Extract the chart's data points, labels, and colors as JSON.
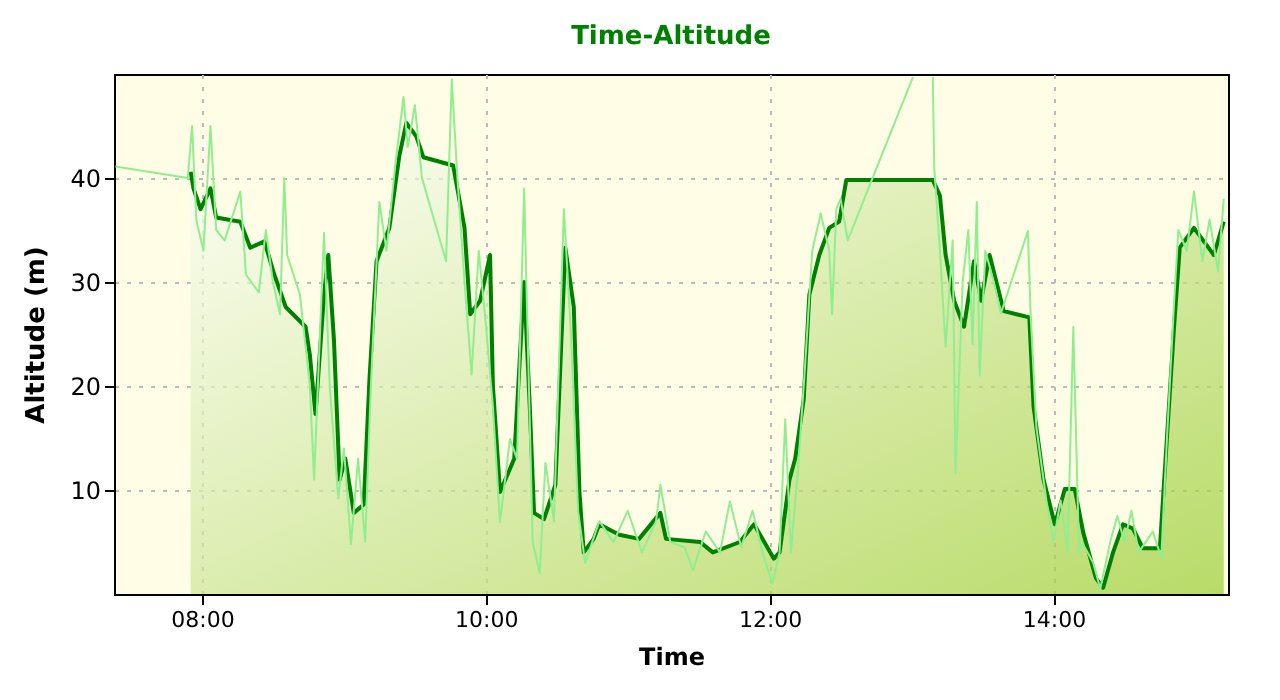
{
  "chart_data": {
    "type": "line",
    "title": "Time-Altitude",
    "xlabel": "Time",
    "ylabel": "Altitude (m)",
    "xlim": [
      7.38,
      15.23
    ],
    "ylim": [
      0,
      50
    ],
    "xticks": [
      {
        "value": 8,
        "label": "08:00"
      },
      {
        "value": 10,
        "label": "10:00"
      },
      {
        "value": 12,
        "label": "12:00"
      },
      {
        "value": 14,
        "label": "14:00"
      }
    ],
    "yticks": [
      10,
      20,
      30,
      40
    ],
    "grid": true,
    "series": [
      {
        "type": "area",
        "color": "#008000",
        "x": [
          7.92,
          7.94,
          7.99,
          8.06,
          8.1,
          8.27,
          8.34,
          8.44,
          8.51,
          8.59,
          8.73,
          8.76,
          8.8,
          8.86,
          8.89,
          8.93,
          8.97,
          9.01,
          9.07,
          9.14,
          9.18,
          9.23,
          9.32,
          9.39,
          9.44,
          9.51,
          9.56,
          9.77,
          9.85,
          9.89,
          9.96,
          10.03,
          10.05,
          10.1,
          10.2,
          10.27,
          10.31,
          10.34,
          10.41,
          10.49,
          10.56,
          10.62,
          10.66,
          10.69,
          10.76,
          10.8,
          10.94,
          11.08,
          11.23,
          11.27,
          11.51,
          11.6,
          11.79,
          11.89,
          12.03,
          12.07,
          12.14,
          12.18,
          12.24,
          12.28,
          12.35,
          12.42,
          12.49,
          12.54,
          13.15,
          13.2,
          13.24,
          13.3,
          13.37,
          13.44,
          13.49,
          13.55,
          13.65,
          13.83,
          13.86,
          13.93,
          14.01,
          14.08,
          14.15,
          14.21,
          14.3,
          14.35,
          14.42,
          14.49,
          14.56,
          14.63,
          14.75,
          14.79,
          14.85,
          14.89,
          14.99,
          15.06,
          15.13,
          15.2
        ],
        "values": [
          40.6,
          39,
          37,
          39,
          36.2,
          35.8,
          33.3,
          33.9,
          30.7,
          27.6,
          25.7,
          23,
          17.3,
          28.8,
          32.6,
          24.4,
          11,
          13,
          7.8,
          8.6,
          20.6,
          32,
          35.2,
          42.1,
          45.3,
          44,
          42,
          41.2,
          35.2,
          26.9,
          28.2,
          32.6,
          20,
          9.8,
          13,
          30,
          18,
          7.8,
          7.2,
          10.5,
          33.3,
          27.6,
          9.8,
          4,
          5.3,
          6.7,
          5.7,
          5.3,
          7.8,
          5.3,
          5,
          4,
          5,
          6.7,
          3.4,
          4,
          11,
          13,
          18.7,
          28.8,
          32.6,
          35.2,
          35.8,
          39.8,
          39.8,
          38.3,
          32.6,
          28.2,
          25.7,
          32,
          28.2,
          32.6,
          27.2,
          26.6,
          18,
          11,
          6.7,
          10.1,
          10.1,
          5.9,
          1.5,
          0.6,
          4,
          6.7,
          6.3,
          4.4,
          4.4,
          13,
          25.7,
          33.3,
          35.2,
          33.9,
          32.6,
          35.8
        ]
      },
      {
        "color": "#90ee90",
        "x": [
          7.39,
          7.9,
          7.93,
          7.96,
          8.01,
          8.06,
          8.1,
          8.16,
          8.27,
          8.31,
          8.4,
          8.45,
          8.5,
          8.55,
          8.58,
          8.6,
          8.69,
          8.76,
          8.79,
          8.86,
          8.9,
          8.96,
          9.0,
          9.05,
          9.1,
          9.15,
          9.19,
          9.25,
          9.3,
          9.36,
          9.42,
          9.45,
          9.5,
          9.55,
          9.72,
          9.76,
          9.8,
          9.85,
          9.9,
          9.95,
          10.0,
          10.05,
          10.1,
          10.17,
          10.22,
          10.27,
          10.3,
          10.33,
          10.38,
          10.42,
          10.48,
          10.55,
          10.6,
          10.65,
          10.7,
          10.8,
          10.9,
          11.0,
          11.1,
          11.2,
          11.23,
          11.3,
          11.4,
          11.46,
          11.55,
          11.65,
          11.72,
          11.8,
          11.88,
          11.95,
          12.02,
          12.07,
          12.11,
          12.15,
          12.2,
          12.25,
          12.3,
          12.36,
          12.42,
          12.44,
          12.47,
          12.5,
          12.55,
          13.01,
          13.08,
          13.15,
          13.16,
          13.2,
          13.24,
          13.29,
          13.31,
          13.36,
          13.4,
          13.43,
          13.46,
          13.48,
          13.52,
          13.58,
          13.63,
          13.82,
          13.84,
          13.88,
          13.95,
          14.0,
          14.05,
          14.1,
          14.14,
          14.18,
          14.2,
          14.28,
          14.33,
          14.4,
          14.45,
          14.5,
          14.55,
          14.6,
          14.7,
          14.76,
          14.8,
          14.85,
          14.88,
          14.94,
          14.99,
          15.05,
          15.1,
          15.16,
          15.2
        ],
        "values": [
          41.1,
          40,
          45,
          36,
          33,
          45,
          35,
          34,
          38.7,
          30.7,
          29,
          35,
          30,
          26.9,
          40,
          32.6,
          28.8,
          20,
          11,
          34.7,
          20,
          9.2,
          14,
          4.8,
          13,
          5,
          20,
          37.7,
          33,
          41,
          47.8,
          43,
          47,
          40,
          32,
          49.5,
          40,
          30,
          21.1,
          33,
          26,
          18,
          6.9,
          14.9,
          13,
          39,
          22,
          5,
          2,
          12.6,
          7,
          37,
          25,
          8,
          3,
          7,
          5,
          8,
          4,
          7,
          10.5,
          5,
          4.5,
          2.3,
          6,
          4,
          8.9,
          4.5,
          8,
          4,
          1,
          4,
          16.8,
          4,
          12,
          22,
          33,
          36.6,
          33,
          26.9,
          37,
          38,
          34,
          49.7,
          null,
          49.7,
          41,
          33,
          23.8,
          34,
          11.6,
          30,
          35,
          24,
          37.7,
          21,
          33,
          30,
          27,
          34.9,
          26.6,
          16,
          9,
          5,
          9,
          4,
          25.7,
          4,
          5,
          3,
          0.5,
          5,
          7.5,
          5,
          8,
          4,
          6,
          3.5,
          15,
          28,
          35,
          33,
          38.7,
          32,
          36,
          31,
          38
        ]
      }
    ]
  }
}
